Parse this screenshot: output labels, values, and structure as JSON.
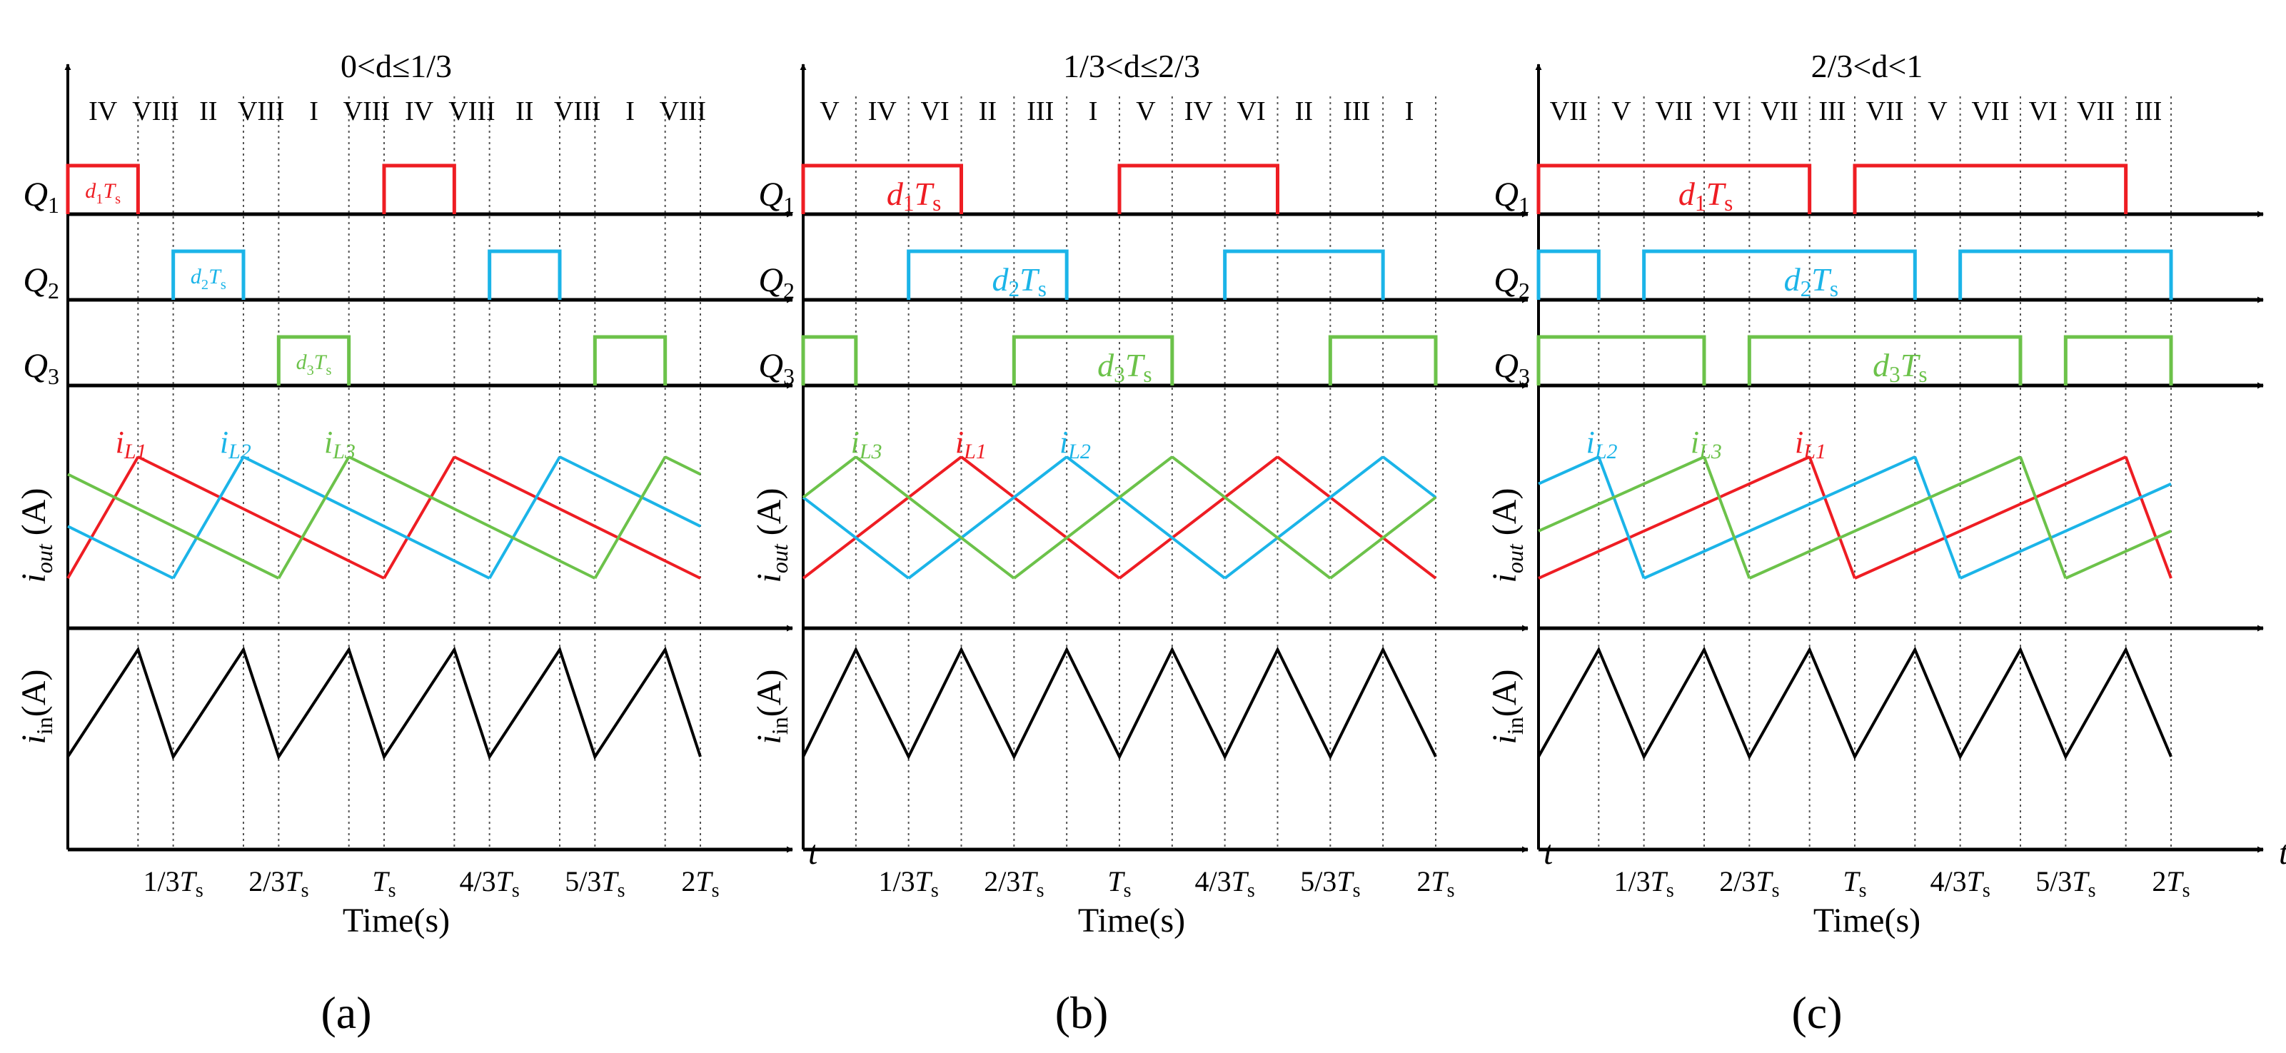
{
  "colors": {
    "axis": "#000000",
    "q1": "#ee1d23",
    "q2": "#1bb4e8",
    "q3": "#6cc24a",
    "grid": "#555555"
  },
  "time_label": "Time(s)",
  "axis_t": "t",
  "tick_labels": [
    "1/3T",
    "2/3T",
    "T",
    "4/3T",
    "5/3T",
    "2T"
  ],
  "tick_sub": "s",
  "row_labels": {
    "q1": {
      "main": "Q",
      "sub": "1"
    },
    "q2": {
      "main": "Q",
      "sub": "2"
    },
    "q3": {
      "main": "Q",
      "sub": "3"
    },
    "iout": {
      "main": "i",
      "sub": "out",
      "unit": "(A)"
    },
    "iin": {
      "main": "i",
      "sub": "in",
      "unit": "(A)"
    }
  },
  "panels": [
    {
      "title": "0<d≤1/3",
      "caption": "(a)",
      "duty": 0.222,
      "sectors": [
        "IV",
        "VIII",
        "II",
        "VIII",
        "I",
        "VIII",
        "IV",
        "VIII",
        "II",
        "VIII",
        "I",
        "VIII"
      ],
      "pulse_labels": [
        {
          "row": "q1",
          "d": "d",
          "n": "1",
          "t": "T",
          "s": "s"
        },
        {
          "row": "q2",
          "d": "d",
          "n": "2",
          "t": "T",
          "s": "s"
        },
        {
          "row": "q3",
          "d": "d",
          "n": "3",
          "t": "T",
          "s": "s"
        }
      ],
      "current_labels": [
        {
          "name": "i",
          "sub": "L1",
          "color": "q1"
        },
        {
          "name": "i",
          "sub": "L2",
          "color": "q2"
        },
        {
          "name": "i",
          "sub": "L3",
          "color": "q3"
        }
      ]
    },
    {
      "title": "1/3<d≤2/3",
      "caption": "(b)",
      "duty": 0.5,
      "sectors": [
        "V",
        "IV",
        "VI",
        "II",
        "III",
        "I",
        "V",
        "IV",
        "VI",
        "II",
        "III",
        "I"
      ],
      "pulse_labels": [
        {
          "row": "q1",
          "d": "d",
          "n": "1",
          "t": "T",
          "s": "s"
        },
        {
          "row": "q2",
          "d": "d",
          "n": "2",
          "t": "T",
          "s": "s"
        },
        {
          "row": "q3",
          "d": "d",
          "n": "3",
          "t": "T",
          "s": "s"
        }
      ],
      "current_labels": [
        {
          "name": "i",
          "sub": "L3",
          "color": "q3"
        },
        {
          "name": "i",
          "sub": "L1",
          "color": "q1"
        },
        {
          "name": "i",
          "sub": "L2",
          "color": "q2"
        }
      ]
    },
    {
      "title": "2/3<d<1",
      "caption": "(c)",
      "duty": 0.857,
      "sectors": [
        "VII",
        "V",
        "VII",
        "VI",
        "VII",
        "III",
        "VII",
        "V",
        "VII",
        "VI",
        "VII",
        "III"
      ],
      "pulse_labels": [
        {
          "row": "q1",
          "d": "d",
          "n": "1",
          "t": "T",
          "s": "s"
        },
        {
          "row": "q2",
          "d": "d",
          "n": "2",
          "t": "T",
          "s": "s"
        },
        {
          "row": "q3",
          "d": "d",
          "n": "3",
          "t": "T",
          "s": "s"
        }
      ],
      "current_labels": [
        {
          "name": "i",
          "sub": "L2",
          "color": "q2"
        },
        {
          "name": "i",
          "sub": "L3",
          "color": "q3"
        },
        {
          "name": "i",
          "sub": "L1",
          "color": "q1"
        }
      ]
    }
  ]
}
